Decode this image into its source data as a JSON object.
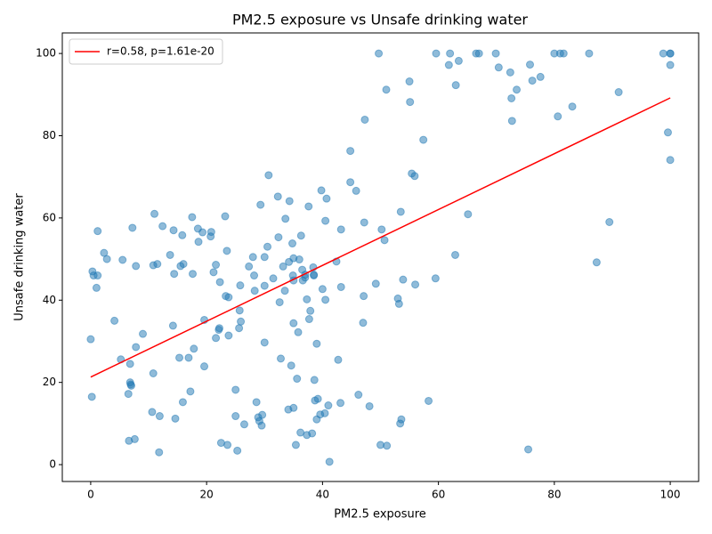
{
  "chart_data": {
    "type": "scatter",
    "title": "PM2.5 exposure vs Unsafe drinking water",
    "x_label": "PM2.5 exposure",
    "y_label": "Unsafe drinking water",
    "xlim": [
      -4.9,
      104.9
    ],
    "ylim": [
      -4.1,
      105
    ],
    "xticks": [
      0,
      20,
      40,
      60,
      80,
      100
    ],
    "yticks": [
      0,
      20,
      40,
      60,
      80,
      100
    ],
    "legend": "upper left",
    "series": [
      {
        "type": "scatter",
        "color": "#1f77b4",
        "x": [
          0.2,
          0,
          0.3,
          0.5,
          1.2,
          1,
          1.2,
          2.3,
          2.8,
          4.1,
          5.2,
          5.5,
          6.5,
          6.6,
          6.8,
          6.8,
          6.9,
          7,
          7.2,
          7.6,
          7.8,
          7.8,
          9,
          10.6,
          10.8,
          10.8,
          11,
          11.5,
          11.8,
          11.9,
          12.4,
          13.7,
          14.2,
          14.3,
          14.4,
          14.6,
          15.3,
          15.5,
          15.9,
          15.8,
          16,
          16.9,
          17.2,
          17.5,
          17.6,
          17.8,
          18.5,
          18.6,
          19.3,
          19.6,
          19.6,
          20.7,
          20.8,
          21.2,
          21.6,
          21.6,
          22.1,
          22.2,
          22.3,
          22.5,
          23.2,
          23.3,
          23.5,
          23.6,
          23.8,
          23.8,
          25,
          25,
          25.3,
          25.6,
          25.7,
          25.8,
          25.9,
          26.5,
          27.3,
          28,
          28.2,
          28.3,
          28.6,
          28.9,
          29.1,
          29.3,
          29.5,
          29.6,
          30,
          30,
          30,
          30.5,
          30.7,
          31.5,
          32.3,
          32.4,
          32.6,
          32.8,
          33.2,
          33.5,
          33.6,
          34.1,
          34.2,
          34.3,
          34.6,
          34.8,
          34.9,
          35,
          35,
          35,
          35,
          35.4,
          35.6,
          35.8,
          36,
          36.2,
          36.3,
          36.5,
          36.6,
          37,
          37,
          37.3,
          37.3,
          37.6,
          37.7,
          37.9,
          38.2,
          38.4,
          38.5,
          38.5,
          38.6,
          38.7,
          39,
          39,
          39.2,
          39.6,
          39.8,
          40,
          40.4,
          40.5,
          40.5,
          40.7,
          41,
          41.2,
          42.4,
          42.7,
          43.1,
          43.2,
          43.2,
          44.8,
          44.8,
          45.8,
          46.2,
          47,
          47.1,
          47.2,
          47.3,
          48.1,
          49.2,
          49.7,
          50,
          50.2,
          50.7,
          51,
          51.1,
          53,
          53.2,
          53.4,
          53.5,
          53.6,
          53.9,
          55,
          55.1,
          55.4,
          55.9,
          56,
          57.4,
          58.3,
          59.5,
          59.6,
          61.8,
          62,
          62.9,
          63,
          63.5,
          65.1,
          66.5,
          67,
          69.9,
          70.4,
          72.4,
          72.6,
          72.7,
          73.5,
          75.5,
          75.8,
          76.2,
          77.6,
          80,
          80.6,
          81,
          81.6,
          83.1,
          86,
          87.3,
          89.5,
          91.1,
          98.8,
          99.6,
          100,
          100,
          100,
          100
        ],
        "y": [
          16.5,
          30.5,
          47,
          46,
          46,
          43,
          56.8,
          51.5,
          50,
          35,
          25.6,
          49.8,
          17.2,
          5.8,
          24.5,
          20,
          19.5,
          19.2,
          57.6,
          6.2,
          28.6,
          48.3,
          31.8,
          12.8,
          22.2,
          48.5,
          61,
          48.8,
          3,
          11.8,
          58,
          51,
          33.8,
          57,
          46.4,
          11.2,
          26,
          48.3,
          15.2,
          55.8,
          48.8,
          26,
          17.8,
          60.2,
          46.4,
          28.2,
          57.4,
          54.2,
          56.5,
          23.9,
          35.2,
          55.5,
          56.6,
          46.8,
          48.6,
          30.8,
          32.8,
          33.2,
          44.4,
          5.3,
          60.4,
          41,
          52,
          4.8,
          40.7,
          31.4,
          11.8,
          18.2,
          3.4,
          33.2,
          37.5,
          43.6,
          34.8,
          9.8,
          48.2,
          50.5,
          46,
          42.3,
          15.2,
          11.5,
          10.6,
          63.2,
          9.5,
          12.1,
          29.7,
          50.5,
          43.5,
          53,
          70.4,
          45.3,
          65.2,
          55.3,
          39.5,
          25.8,
          48.2,
          42.3,
          59.8,
          13.4,
          49.3,
          64.1,
          24.1,
          53.8,
          46,
          50.2,
          44.8,
          34.4,
          13.8,
          4.8,
          20.9,
          32.2,
          49.9,
          7.8,
          55.7,
          47.4,
          44.8,
          45.5,
          46.2,
          40.2,
          7.2,
          62.8,
          35.4,
          37.4,
          7.6,
          48,
          46.2,
          46,
          20.6,
          15.6,
          29.4,
          11,
          16,
          12.2,
          66.7,
          42.7,
          12.5,
          40.1,
          59.3,
          64.7,
          14.4,
          0.7,
          49.4,
          25.5,
          15,
          57.2,
          43.2,
          76.3,
          68.7,
          66.6,
          17,
          34.5,
          41,
          58.9,
          83.9,
          14.2,
          44,
          100,
          4.8,
          57.2,
          54.6,
          91.2,
          4.6,
          40.4,
          39.1,
          10,
          61.5,
          11,
          45,
          93.2,
          88.2,
          70.8,
          70.2,
          43.8,
          79,
          15.5,
          45.3,
          100,
          97.2,
          100,
          51,
          92.3,
          98.2,
          60.9,
          100,
          100,
          100,
          96.6,
          95.4,
          89.1,
          83.6,
          91.2,
          3.7,
          97.3,
          93.4,
          94.3,
          100,
          84.7,
          100,
          100,
          87.1,
          100,
          49.2,
          59,
          90.6,
          100,
          80.8,
          100,
          100,
          97.2,
          74.1
        ]
      },
      {
        "type": "line",
        "name": "r=0.58, p=1.61e-20",
        "color": "#ff0000",
        "x": [
          0,
          100
        ],
        "y": [
          21.3,
          89.2
        ]
      }
    ]
  }
}
